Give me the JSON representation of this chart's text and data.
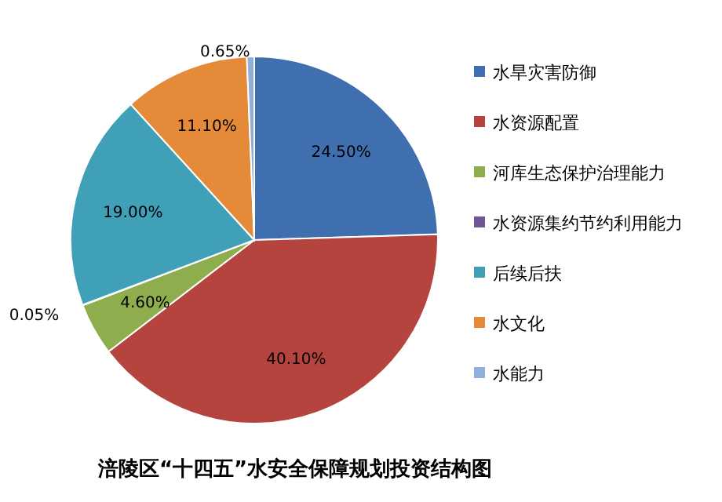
{
  "chart_data": {
    "type": "pie",
    "title": "涪陵区“十四五”水安全保障规划投资结构图",
    "categories": [
      "水旱灾害防御",
      "水资源配置",
      "河库生态保护治理能力",
      "水资源集约节约利用能力",
      "后续后扶",
      "水文化",
      "水能力"
    ],
    "values": [
      24.5,
      40.1,
      4.6,
      0.05,
      19.0,
      11.1,
      0.65
    ],
    "value_labels": [
      "24.50%",
      "40.10%",
      "4.60%",
      "0.05%",
      "19.00%",
      "11.10%",
      "0.65%"
    ],
    "colors": [
      "#3f6fae",
      "#b5443f",
      "#8eae4e",
      "#6f5796",
      "#3fa0b8",
      "#e58a38",
      "#8fb0dd"
    ],
    "legend": "right"
  }
}
